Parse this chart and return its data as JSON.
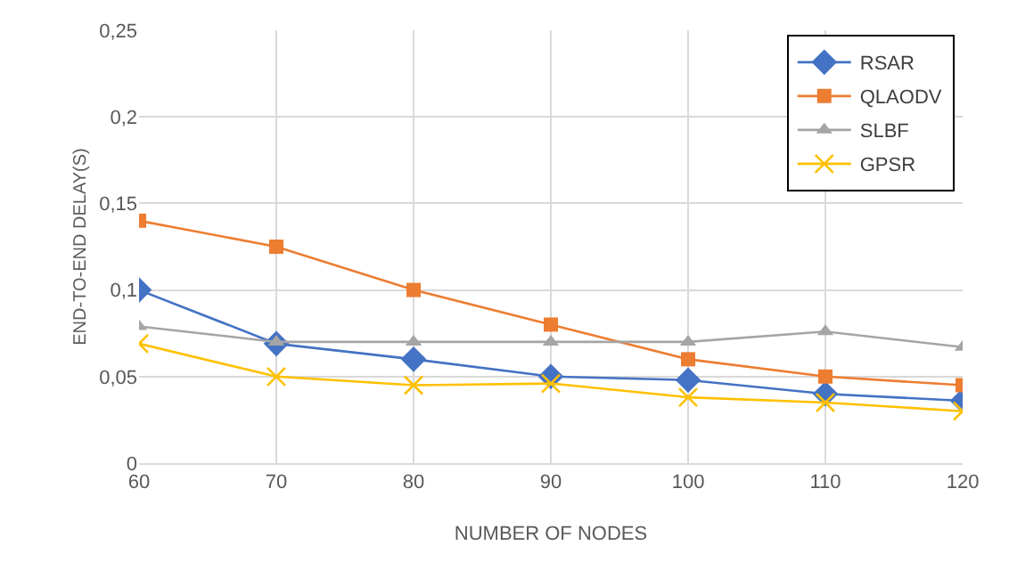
{
  "chart_data": {
    "type": "line",
    "xlabel": "NUMBER OF NODES",
    "ylabel": "END-TO-END DELAY(S)",
    "x": [
      60,
      70,
      80,
      90,
      100,
      110,
      120
    ],
    "xlim": [
      60,
      120
    ],
    "xticks": [
      60,
      70,
      80,
      90,
      100,
      110,
      120
    ],
    "ylim": [
      0,
      0.25
    ],
    "yticks": [
      0,
      {
        "value": 0.05,
        "label": "0,05"
      },
      {
        "value": 0.1,
        "label": "0,1"
      },
      {
        "value": 0.15,
        "label": "0,15"
      },
      {
        "value": 0.2,
        "label": "0,2"
      },
      {
        "value": 0.25,
        "label": "0,25"
      }
    ],
    "grid": true,
    "legend": "top right",
    "line_style": "solid",
    "series": [
      {
        "name": "RSAR",
        "color": "#4472c4",
        "marker": "diamond",
        "values": [
          0.1,
          0.069,
          0.06,
          0.05,
          0.048,
          0.04,
          0.036
        ]
      },
      {
        "name": "QLAODV",
        "color": "#ed7d31",
        "marker": "square",
        "values": [
          0.14,
          0.125,
          0.1,
          0.08,
          0.06,
          0.05,
          0.045
        ]
      },
      {
        "name": "SLBF",
        "color": "#a5a5a5",
        "marker": "triangle",
        "values": [
          0.079,
          0.07,
          0.07,
          0.07,
          0.07,
          0.076,
          0.067
        ]
      },
      {
        "name": "GPSR",
        "color": "#ffc000",
        "marker": "cross",
        "values": [
          0.069,
          0.05,
          0.045,
          0.046,
          0.038,
          0.035,
          0.03
        ]
      }
    ]
  }
}
